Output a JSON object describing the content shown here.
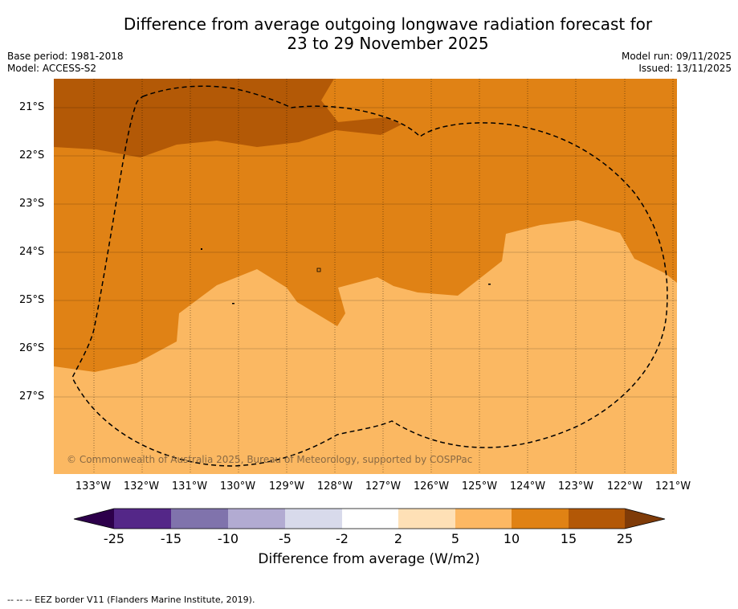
{
  "title": {
    "line1": "Difference from average outgoing longwave radiation forecast for",
    "line2": "23 to 29 November 2025"
  },
  "meta": {
    "base_period": "Base period: 1981-2018",
    "model": "Model: ACCESS-S2",
    "model_run": "Model run: 09/11/2025",
    "issued": "Issued: 13/11/2025"
  },
  "map": {
    "lat_labels": [
      "21°S",
      "22°S",
      "23°S",
      "24°S",
      "25°S",
      "26°S",
      "27°S"
    ],
    "lon_labels": [
      "133°W",
      "132°W",
      "131°W",
      "130°W",
      "129°W",
      "128°W",
      "127°W",
      "126°W",
      "125°W",
      "124°W",
      "123°W",
      "122°W",
      "121°W"
    ],
    "copyright": "© Commonwealth of Australia 2025, Bureau of Meteorology, supported by COSPPac",
    "colors": {
      "class_5_10": "#fbb862",
      "class_10_15": "#e08215",
      "class_15_25": "#b35906",
      "gridline": "#000000",
      "eez": "#000000"
    }
  },
  "colorbar": {
    "colors": [
      "#2d004b",
      "#542788",
      "#8073ac",
      "#b2abd2",
      "#d8daeb",
      "#ffffff",
      "#fee0b6",
      "#fdb863",
      "#e08214",
      "#b35806",
      "#7f3b08"
    ],
    "ticks": [
      "-25",
      "-15",
      "-10",
      "-5",
      "-2",
      "2",
      "5",
      "10",
      "15",
      "25"
    ],
    "label": "Difference from average (W/m2)"
  },
  "legend": {
    "eez": "-- -- -- EEZ border V11 (Flanders Marine Institute, 2019)."
  }
}
